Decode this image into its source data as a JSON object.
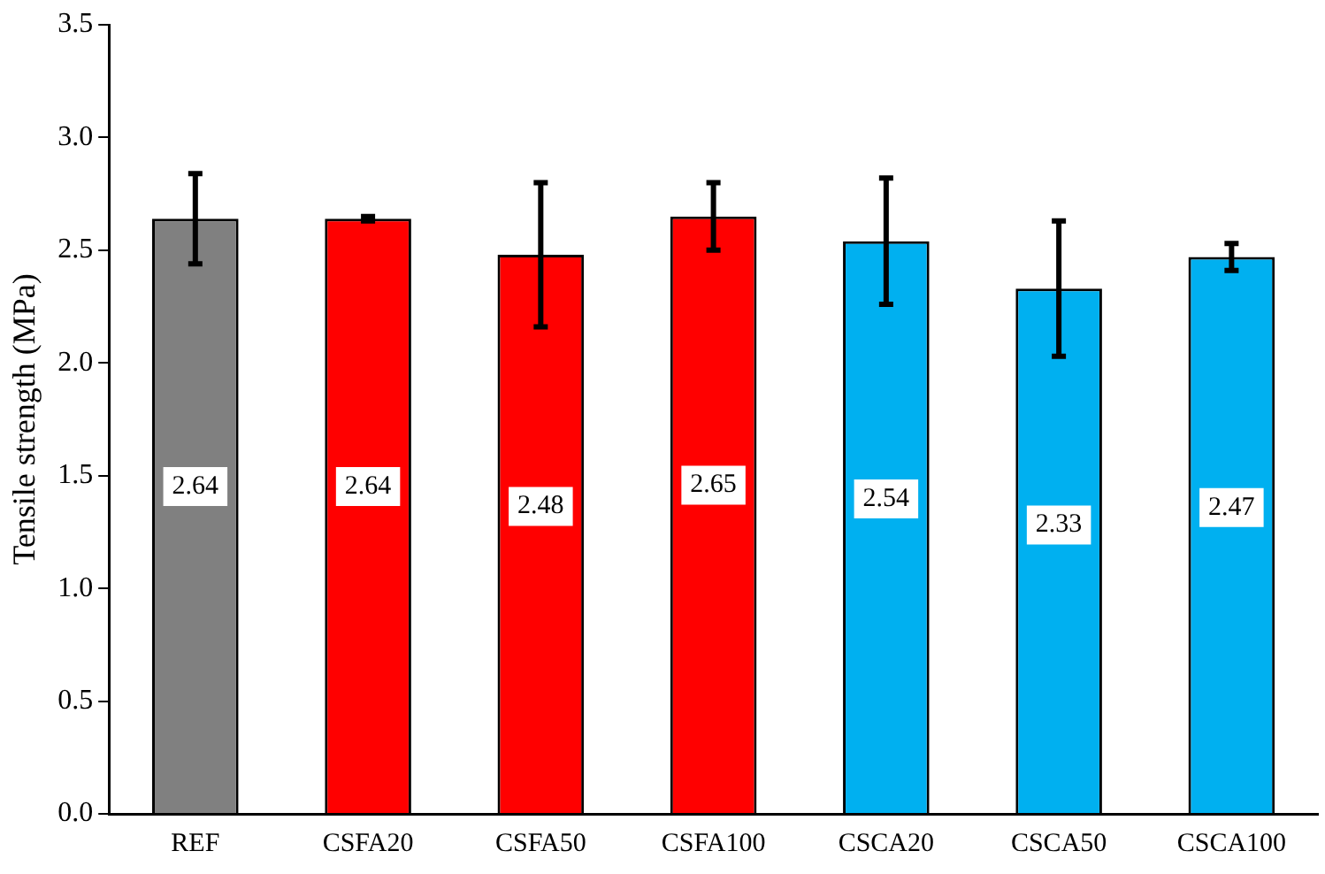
{
  "chart_data": {
    "type": "bar",
    "ylabel": "Tensile strength (MPa)",
    "categories": [
      "REF",
      "CSFA20",
      "CSFA50",
      "CSFA100",
      "CSCA20",
      "CSCA50",
      "CSCA100"
    ],
    "values": [
      2.64,
      2.64,
      2.48,
      2.65,
      2.54,
      2.33,
      2.47
    ],
    "colors": [
      "#808080",
      "#ff0000",
      "#ff0000",
      "#ff0000",
      "#00b0f0",
      "#00b0f0",
      "#00b0f0"
    ],
    "errors": [
      0.2,
      0.01,
      0.32,
      0.15,
      0.28,
      0.3,
      0.06
    ],
    "ylim": [
      0,
      3.5
    ],
    "yticks": [
      {
        "value": 0,
        "label": "0.0"
      },
      {
        "value": 0.5,
        "label": "0.5"
      },
      {
        "value": 1,
        "label": "1.0"
      },
      {
        "value": 1.5,
        "label": "1.5"
      },
      {
        "value": 2,
        "label": "2.0"
      },
      {
        "value": 2.5,
        "label": "2.5"
      },
      {
        "value": 3,
        "label": "3.0"
      },
      {
        "value": 3.5,
        "label": "3.5"
      }
    ],
    "grid": false,
    "legend": false,
    "data_labels": true
  }
}
